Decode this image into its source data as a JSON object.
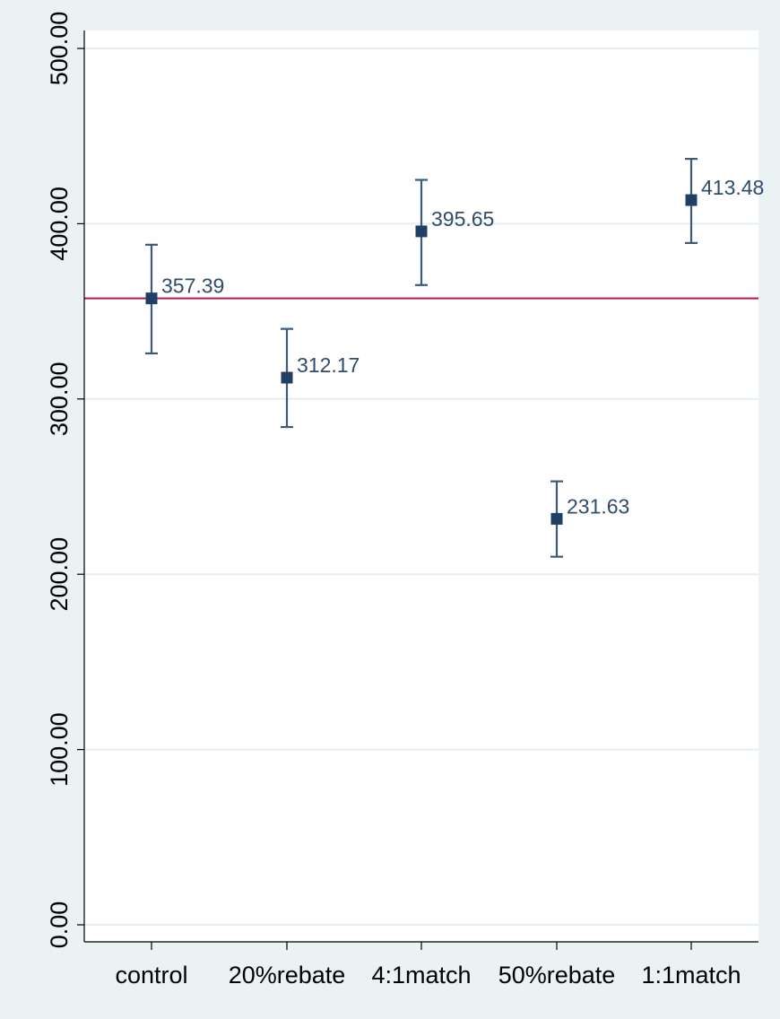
{
  "chart_data": {
    "type": "scatter",
    "title": "",
    "xlabel": "",
    "ylabel": "",
    "categories": [
      "control",
      "20%rebate",
      "4:1match",
      "50%rebate",
      "1:1match"
    ],
    "values": [
      357.39,
      312.17,
      395.65,
      231.63,
      413.48
    ],
    "value_labels": [
      "357.39",
      "312.17",
      "395.65",
      "231.63",
      "413.48"
    ],
    "ci_lower": [
      326,
      284,
      365,
      210,
      389
    ],
    "ci_upper": [
      388,
      340,
      425,
      253,
      437
    ],
    "reference_line": 357.39,
    "ylim": [
      0,
      500
    ],
    "yticks": [
      0,
      100,
      200,
      300,
      400,
      500
    ],
    "ytick_labels": [
      "0.00",
      "100.00",
      "200.00",
      "300.00",
      "400.00",
      "500.00"
    ],
    "grid": true,
    "legend": "none",
    "colors": {
      "marker": "#1f3f66",
      "errorbar": "#3d5a78",
      "label": "#2f4c6c",
      "reference_line": "#b3174a",
      "grid": "#e6eef0",
      "plot_bg": "#ffffff",
      "outer_bg": "#eaf2f3"
    }
  }
}
